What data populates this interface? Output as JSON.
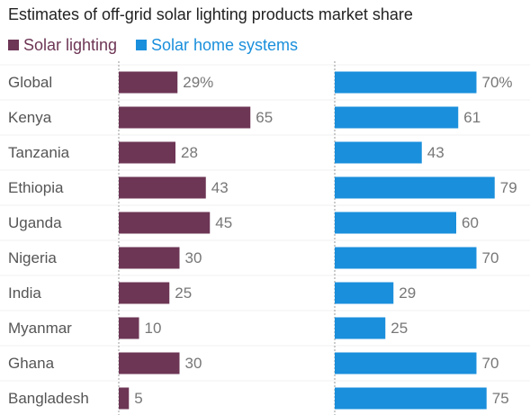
{
  "chart_data": {
    "type": "bar",
    "title": "Estimates of off-grid solar lighting products market share",
    "categories": [
      "Global",
      "Kenya",
      "Tanzania",
      "Ethiopia",
      "Uganda",
      "Nigeria",
      "India",
      "Myanmar",
      "Ghana",
      "Bangladesh"
    ],
    "series": [
      {
        "name": "Solar lighting",
        "color": "#6d3655",
        "values": [
          29,
          65,
          28,
          43,
          45,
          30,
          25,
          10,
          30,
          5
        ],
        "labels": [
          "29%",
          "65",
          "28",
          "43",
          "45",
          "30",
          "25",
          "10",
          "30",
          "5"
        ]
      },
      {
        "name": "Solar home systems",
        "color": "#1a8fdc",
        "values": [
          70,
          61,
          43,
          79,
          60,
          70,
          29,
          25,
          70,
          75
        ],
        "labels": [
          "70%",
          "61",
          "43",
          "79",
          "60",
          "70",
          "29",
          "25",
          "70",
          "75"
        ]
      }
    ],
    "xlim": [
      0,
      100
    ],
    "grid": true,
    "legend_position": "top-left"
  }
}
